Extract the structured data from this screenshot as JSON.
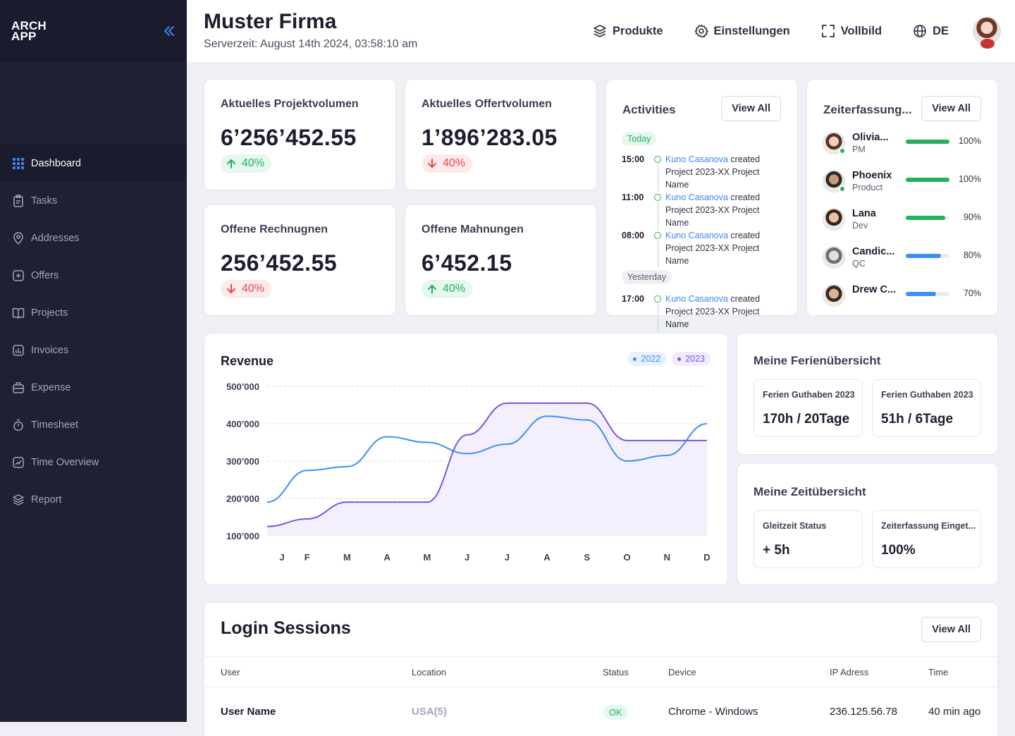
{
  "brand": {
    "line1": "ARCH",
    "line2": "APP"
  },
  "nav": [
    {
      "label": "Dashboard",
      "icon": "grid-icon",
      "active": true
    },
    {
      "label": "Tasks",
      "icon": "clipboard-icon"
    },
    {
      "label": "Addresses",
      "icon": "location-pin-icon"
    },
    {
      "label": "Offers",
      "icon": "plus-square-icon"
    },
    {
      "label": "Projects",
      "icon": "book-icon"
    },
    {
      "label": "Invoices",
      "icon": "bar-chart-square-icon"
    },
    {
      "label": "Expense",
      "icon": "briefcase-icon"
    },
    {
      "label": "Timesheet",
      "icon": "stopwatch-icon"
    },
    {
      "label": "Time Overview",
      "icon": "chart-trend-icon"
    },
    {
      "label": "Report",
      "icon": "layers-icon"
    }
  ],
  "header": {
    "title": "Muster Firma",
    "server_time": "Serverzeit: August 14th 2024, 03:58:10 am",
    "actions": {
      "products": "Produkte",
      "settings": "Einstellungen",
      "fullscreen": "Vollbild",
      "language": "DE"
    }
  },
  "kpis": [
    {
      "title": "Aktuelles Projektvolumen",
      "value": "6’256’452.55",
      "change": "40%",
      "direction": "up"
    },
    {
      "title": "Aktuelles Offertvolumen",
      "value": "1’896’283.05",
      "change": "40%",
      "direction": "down"
    },
    {
      "title": "Offene Rechnugnen",
      "value": "256’452.55",
      "change": "40%",
      "direction": "down"
    },
    {
      "title": "Offene Mahnungen",
      "value": "6’452.15",
      "change": "40%",
      "direction": "up"
    }
  ],
  "activities": {
    "title": "Activities",
    "view_all": "View All",
    "today": "Today",
    "yesterday": "Yesterday",
    "items": [
      {
        "time": "15:00",
        "who": "Kuno Casanova",
        "text": " created Project 2023-XX Project Name"
      },
      {
        "time": "11:00",
        "who": "Kuno Casanova",
        "text": " created Project 2023-XX Project Name"
      },
      {
        "time": "08:00",
        "who": "Kuno Casanova",
        "text": " created Project 2023-XX Project Name"
      }
    ],
    "yesterday_items": [
      {
        "time": "17:00",
        "who": "Kuno Casanova",
        "text": " created Project 2023-XX Project Name"
      }
    ]
  },
  "zeiterfassung": {
    "title": "Zeiterfassung...",
    "view_all": "View All",
    "people": [
      {
        "name": "Olivia...",
        "role": "PM",
        "pct": 100,
        "pct_label": "100%",
        "color": "#22b061",
        "online": true,
        "skin": "#f1cdbd",
        "hair": "#5a3324"
      },
      {
        "name": "Phoenix",
        "role": "Product",
        "pct": 100,
        "pct_label": "100%",
        "color": "#22b061",
        "online": true,
        "skin": "#c99a7a",
        "hair": "#2d2a26"
      },
      {
        "name": "Lana",
        "role": "Dev",
        "pct": 90,
        "pct_label": "90%",
        "color": "#22b061",
        "online": false,
        "skin": "#e8c2a8",
        "hair": "#3a2418"
      },
      {
        "name": "Candic...",
        "role": "QC",
        "pct": 80,
        "pct_label": "80%",
        "color": "#3d8ff6",
        "online": false,
        "skin": "#e6ded8",
        "hair": "#6f6f6f"
      },
      {
        "name": "Drew C...",
        "role": "",
        "pct": 70,
        "pct_label": "70%",
        "color": "#3d8ff6",
        "online": false,
        "skin": "#d9b49a",
        "hair": "#3a2a22"
      }
    ]
  },
  "revenue": {
    "title": "Revenue",
    "colors": {
      "2022": "#3d8ff6",
      "2023": "#7b55e0"
    }
  },
  "chart_data": {
    "type": "line",
    "title": "Revenue",
    "categories": [
      "J",
      "F",
      "M",
      "A",
      "M",
      "J",
      "J",
      "A",
      "S",
      "O",
      "N",
      "D"
    ],
    "yticks": [
      "500’000",
      "400’000",
      "300’000",
      "200’000",
      "100’000"
    ],
    "ylim": [
      100000,
      500000
    ],
    "grid": true,
    "legend": "top-right",
    "series": [
      {
        "name": "2022",
        "values": [
          190000,
          275000,
          285000,
          365000,
          350000,
          320000,
          345000,
          420000,
          410000,
          300000,
          315000,
          400000
        ]
      },
      {
        "name": "2023",
        "values": [
          125000,
          145000,
          190000,
          190000,
          190000,
          370000,
          455000,
          455000,
          455000,
          355000,
          355000,
          355000
        ]
      }
    ]
  },
  "ferien": {
    "title": "Meine Ferienübersicht",
    "cards": [
      {
        "label": "Ferien Guthaben 2023",
        "value": "170h / 20Tage"
      },
      {
        "label": "Ferien Guthaben 2023",
        "value": "51h / 6Tage"
      }
    ]
  },
  "zeit": {
    "title": "Meine Zeitübersicht",
    "cards": [
      {
        "label": "Gleitzeit Status",
        "value": "+ 5h"
      },
      {
        "label": "Zeiterfassung Einget...",
        "value": "100%"
      }
    ]
  },
  "sessions": {
    "title": "Login Sessions",
    "view_all": "View All",
    "columns": [
      "User",
      "Location",
      "Status",
      "Device",
      "IP Adress",
      "Time"
    ],
    "rows": [
      {
        "user": "User Name",
        "location": "USA(5)",
        "status": "OK",
        "device": "Chrome - Windows",
        "ip": "236.125.56.78",
        "time": "40 min ago"
      }
    ]
  }
}
